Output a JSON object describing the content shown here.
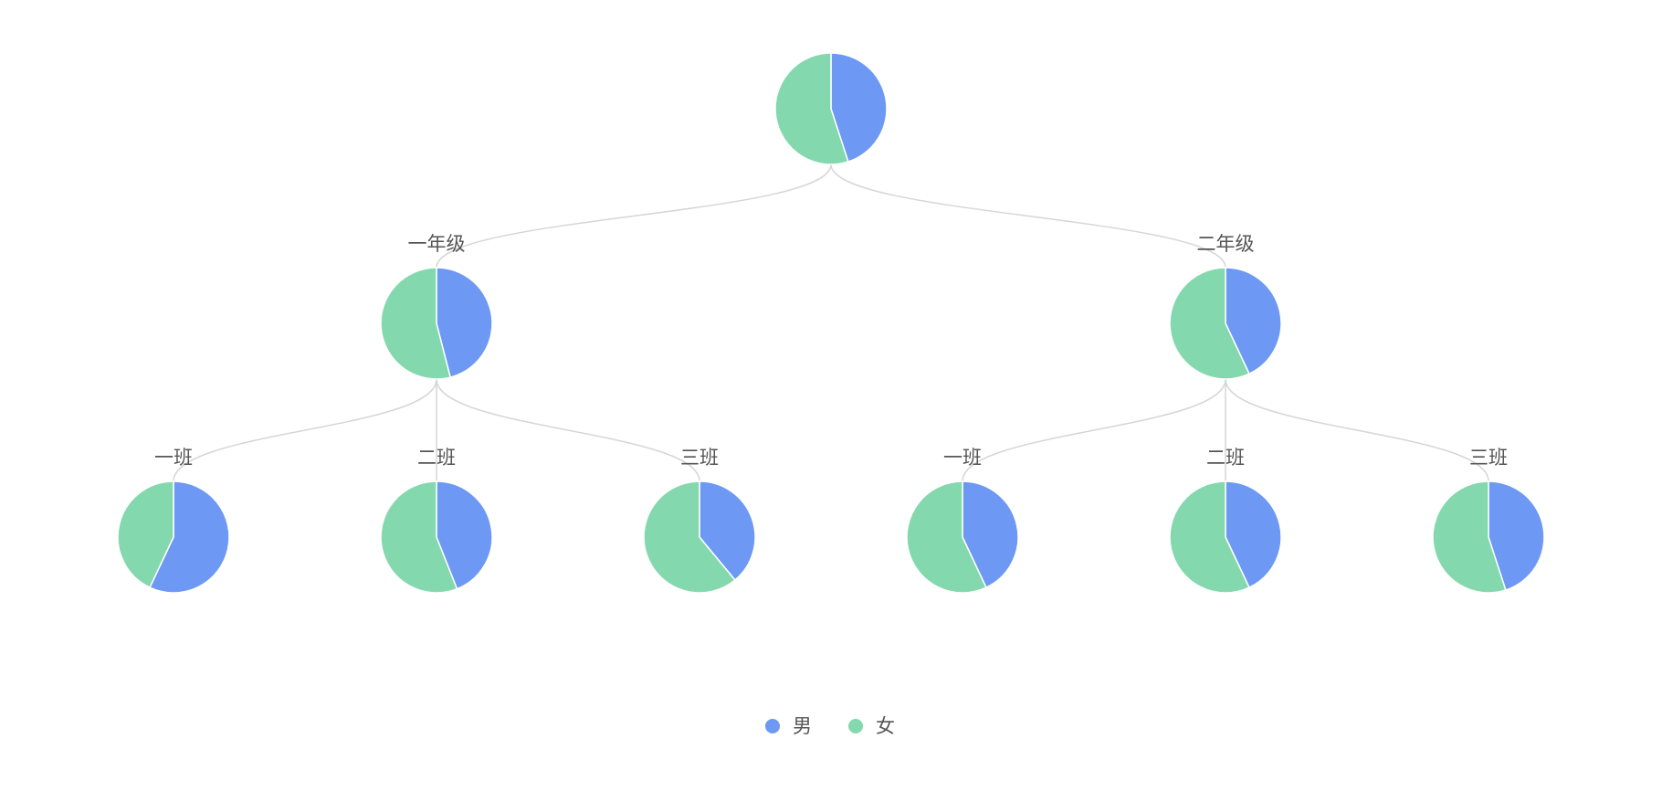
{
  "chart_data": {
    "type": "pie",
    "layout": "tree",
    "legend_position": "bottom-center",
    "legend": [
      {
        "name": "男",
        "color": "#6d98f3"
      },
      {
        "name": "女",
        "color": "#84d8ad"
      }
    ],
    "tree": {
      "label": "",
      "values": [
        45,
        55
      ],
      "children": [
        {
          "label": "一年级",
          "values": [
            46,
            54
          ],
          "children": [
            {
              "label": "一班",
              "values": [
                57,
                43
              ]
            },
            {
              "label": "二班",
              "values": [
                44,
                56
              ]
            },
            {
              "label": "三班",
              "values": [
                39,
                61
              ]
            }
          ]
        },
        {
          "label": "二年级",
          "values": [
            43,
            57
          ],
          "children": [
            {
              "label": "一班",
              "values": [
                43,
                57
              ]
            },
            {
              "label": "二班",
              "values": [
                43,
                57
              ]
            },
            {
              "label": "三班",
              "values": [
                45,
                55
              ]
            }
          ]
        }
      ]
    }
  }
}
